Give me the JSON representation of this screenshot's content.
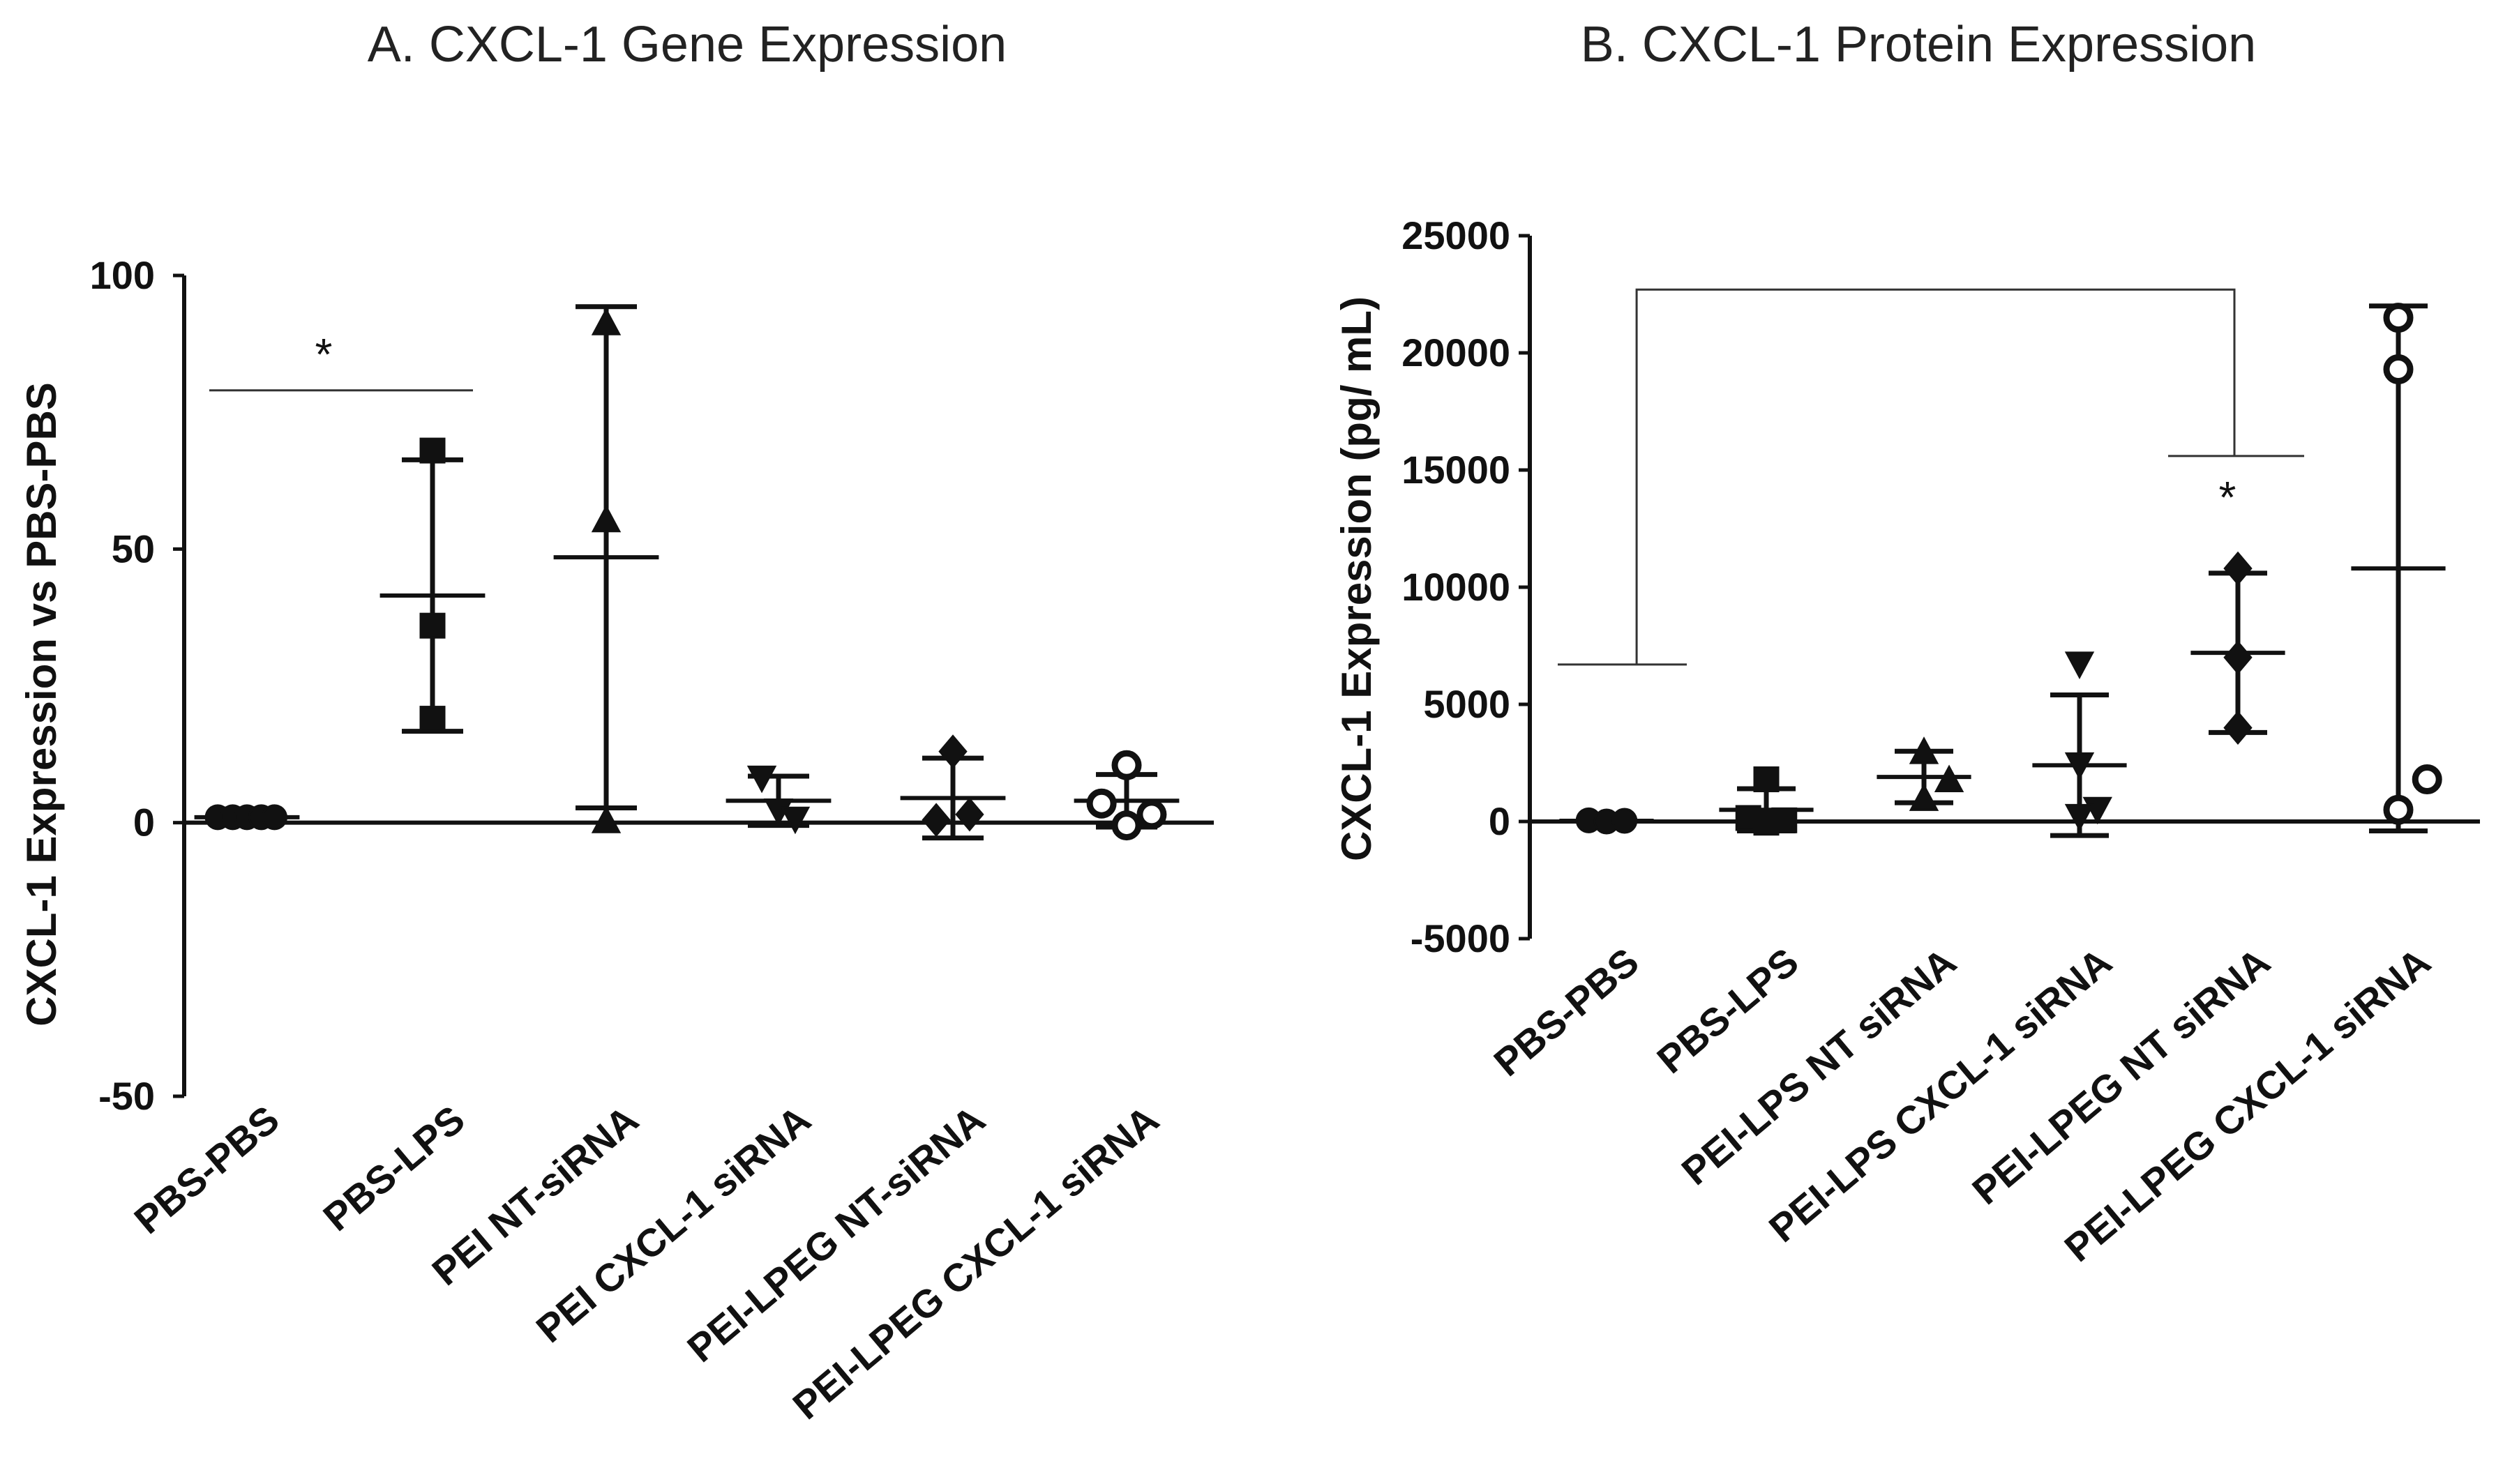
{
  "chart_data": [
    {
      "type": "scatter",
      "title": "A.   CXCL-1 Gene Expression",
      "xlabel": "",
      "ylabel": "CXCL-1 Expression vs PBS-PBS",
      "ylim": [
        -50,
        100
      ],
      "yticks": [
        -50,
        0,
        50,
        100
      ],
      "ytick_labels": [
        "-50",
        "0",
        "50",
        "100"
      ],
      "categories": [
        "PBS-PBS",
        "PBS-LPS",
        "PEI NT-siRNA",
        "PEI CXCL-1 siRNA",
        "PEI-LPEG NT-siRNA",
        "PEI-LPEG CXCL-1 siRNA"
      ],
      "series": [
        {
          "name": "PBS-PBS",
          "marker": "circle-filled",
          "points": [
            [
              -0.35,
              1
            ],
            [
              -0.17,
              1
            ],
            [
              0,
              1
            ],
            [
              0.17,
              1
            ],
            [
              0.33,
              1
            ]
          ],
          "mean": 1,
          "sd": 0.3
        },
        {
          "name": "PBS-LPS",
          "marker": "square",
          "points": [
            [
              0,
              68
            ],
            [
              0,
              36
            ],
            [
              0,
              19
            ]
          ],
          "mean": 41.5,
          "sd": 24.8
        },
        {
          "name": "PEI NT-siRNA",
          "marker": "triangle-up",
          "points": [
            [
              0,
              91
            ],
            [
              0,
              55
            ],
            [
              0,
              0
            ]
          ],
          "mean": 48.5,
          "sd": 45.8
        },
        {
          "name": "PEI CXCL-1 siRNA",
          "marker": "triangle-down",
          "points": [
            [
              -0.2,
              8.5
            ],
            [
              0,
              2.5
            ],
            [
              0.2,
              1
            ]
          ],
          "mean": 4,
          "sd": 4.5
        },
        {
          "name": "PEI-LPEG NT-siRNA",
          "marker": "diamond",
          "points": [
            [
              0,
              13
            ],
            [
              -0.2,
              0.5
            ],
            [
              0.2,
              1.5
            ]
          ],
          "mean": 4.5,
          "sd": 7.3
        },
        {
          "name": "PEI-LPEG CXCL-1 siRNA",
          "marker": "circle-open",
          "points": [
            [
              -0.3,
              3.5
            ],
            [
              0,
              10.5
            ],
            [
              0,
              -0.5
            ],
            [
              0.3,
              1.5
            ]
          ],
          "mean": 4,
          "sd": 4.8
        }
      ],
      "annotations": [
        {
          "type": "significance",
          "text": "*",
          "from": 0,
          "to": 1,
          "y": 79
        }
      ]
    },
    {
      "type": "scatter",
      "title": "B.   CXCL-1 Protein Expression",
      "xlabel": "",
      "ylabel": "CXCL-1 Expression (pg/ mL)",
      "ylim": [
        -5000,
        25000
      ],
      "yticks": [
        -5000,
        0,
        5000,
        10000,
        15000,
        20000,
        25000
      ],
      "ytick_labels": [
        "-5000",
        "0",
        "5000",
        "10000",
        "15000",
        "20000",
        "25000"
      ],
      "categories": [
        "PBS-PBS",
        "PBS-LPS",
        "PEI-LPS NT siRNA",
        "PEI-LPS CXCL-1 siRNA",
        "PEI-LPEG NT siRNA",
        "PEI-LPEG CXCL-1 siRNA"
      ],
      "series": [
        {
          "name": "PBS-PBS",
          "marker": "circle-filled",
          "points": [
            [
              -0.25,
              50
            ],
            [
              0,
              0
            ],
            [
              0.25,
              30
            ]
          ],
          "mean": 30,
          "sd": 30
        },
        {
          "name": "PBS-LPS",
          "marker": "square",
          "points": [
            [
              0,
              1800
            ],
            [
              -0.25,
              150
            ],
            [
              0.25,
              50
            ],
            [
              0,
              -50
            ]
          ],
          "mean": 500,
          "sd": 900
        },
        {
          "name": "PEI-LPS NT siRNA",
          "marker": "triangle-up",
          "points": [
            [
              0,
              2900
            ],
            [
              0.35,
              1700
            ],
            [
              0,
              900
            ]
          ],
          "mean": 1900,
          "sd": 1100
        },
        {
          "name": "PEI-LPS CXCL-1 siRNA",
          "marker": "triangle-down",
          "points": [
            [
              0,
              6800
            ],
            [
              0,
              2500
            ],
            [
              0.25,
              600
            ],
            [
              0,
              300
            ]
          ],
          "mean": 2400,
          "sd": 3000
        },
        {
          "name": "PEI-LPEG NT siRNA",
          "marker": "diamond",
          "points": [
            [
              0,
              10800
            ],
            [
              0,
              7000
            ],
            [
              0,
              4000
            ]
          ],
          "mean": 7200,
          "sd": 3400
        },
        {
          "name": "PEI-LPEG CXCL-1 siRNA",
          "marker": "circle-open",
          "points": [
            [
              0,
              21500
            ],
            [
              0,
              19300
            ],
            [
              0,
              500
            ],
            [
              0.4,
              1800
            ]
          ],
          "mean": 10800,
          "sd": 11200
        }
      ],
      "annotations": [
        {
          "type": "significance",
          "text": "*",
          "from": 0,
          "to": 4,
          "y": 22700
        }
      ]
    }
  ]
}
